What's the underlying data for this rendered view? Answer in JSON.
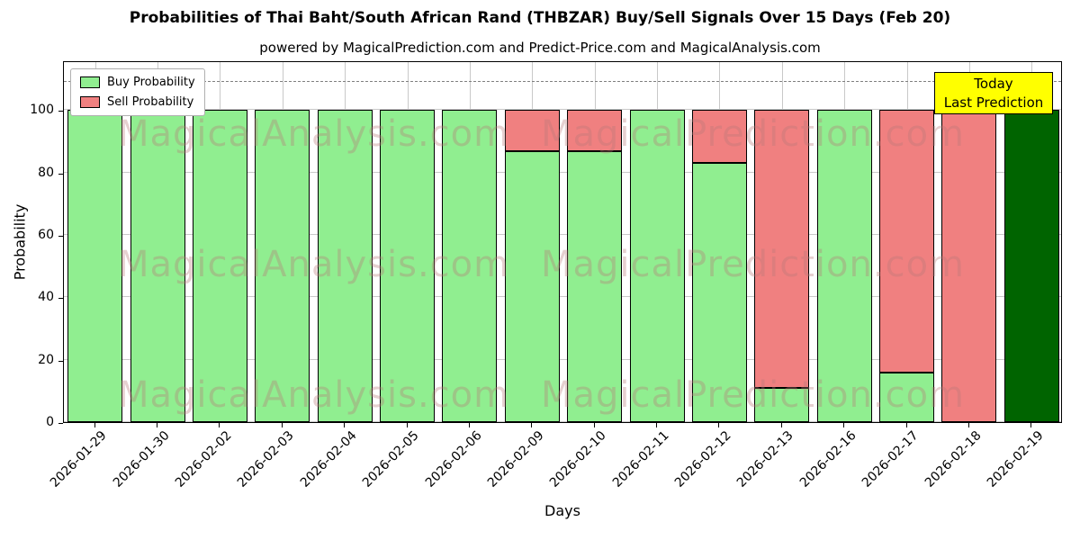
{
  "title": "Probabilities of Thai Baht/South African Rand (THBZAR) Buy/Sell Signals Over 15 Days (Feb 20)",
  "subtitle": "powered by MagicalPrediction.com and Predict-Price.com and MagicalAnalysis.com",
  "annotation": {
    "lines": [
      "Today",
      "Last Prediction"
    ],
    "bg_color": "#ffff00"
  },
  "watermarks": {
    "left": "MagicalAnalysis.com",
    "right": "MagicalPrediction.com"
  },
  "chart_data": {
    "type": "bar",
    "stacked": true,
    "title": "Probabilities of Thai Baht/South African Rand (THBZAR) Buy/Sell Signals Over 15 Days (Feb 20)",
    "xlabel": "Days",
    "ylabel": "Probability",
    "categories": [
      "2026-01-29",
      "2026-01-30",
      "2026-02-02",
      "2026-02-03",
      "2026-02-04",
      "2026-02-05",
      "2026-02-06",
      "2026-02-09",
      "2026-02-10",
      "2026-02-11",
      "2026-02-12",
      "2026-02-13",
      "2026-02-16",
      "2026-02-17",
      "2026-02-18",
      "2026-02-19"
    ],
    "series": [
      {
        "name": "Buy Probability",
        "color": "#90EE90",
        "values": [
          100,
          100,
          100,
          100,
          100,
          100,
          100,
          87,
          87,
          100,
          83,
          11,
          100,
          16,
          0,
          100
        ]
      },
      {
        "name": "Sell Probability",
        "color": "#F08080",
        "values": [
          0,
          0,
          0,
          0,
          0,
          0,
          0,
          13,
          13,
          0,
          17,
          89,
          0,
          84,
          100,
          0
        ]
      }
    ],
    "today_bar": {
      "index": 15,
      "color": "#006400"
    },
    "ylim": [
      0,
      116
    ],
    "yticks": [
      0,
      20,
      40,
      60,
      80,
      100
    ],
    "hline": {
      "y": 110,
      "style": "dashed",
      "color": "#7f7f7f"
    },
    "grid": true,
    "legend_position": "upper left"
  }
}
